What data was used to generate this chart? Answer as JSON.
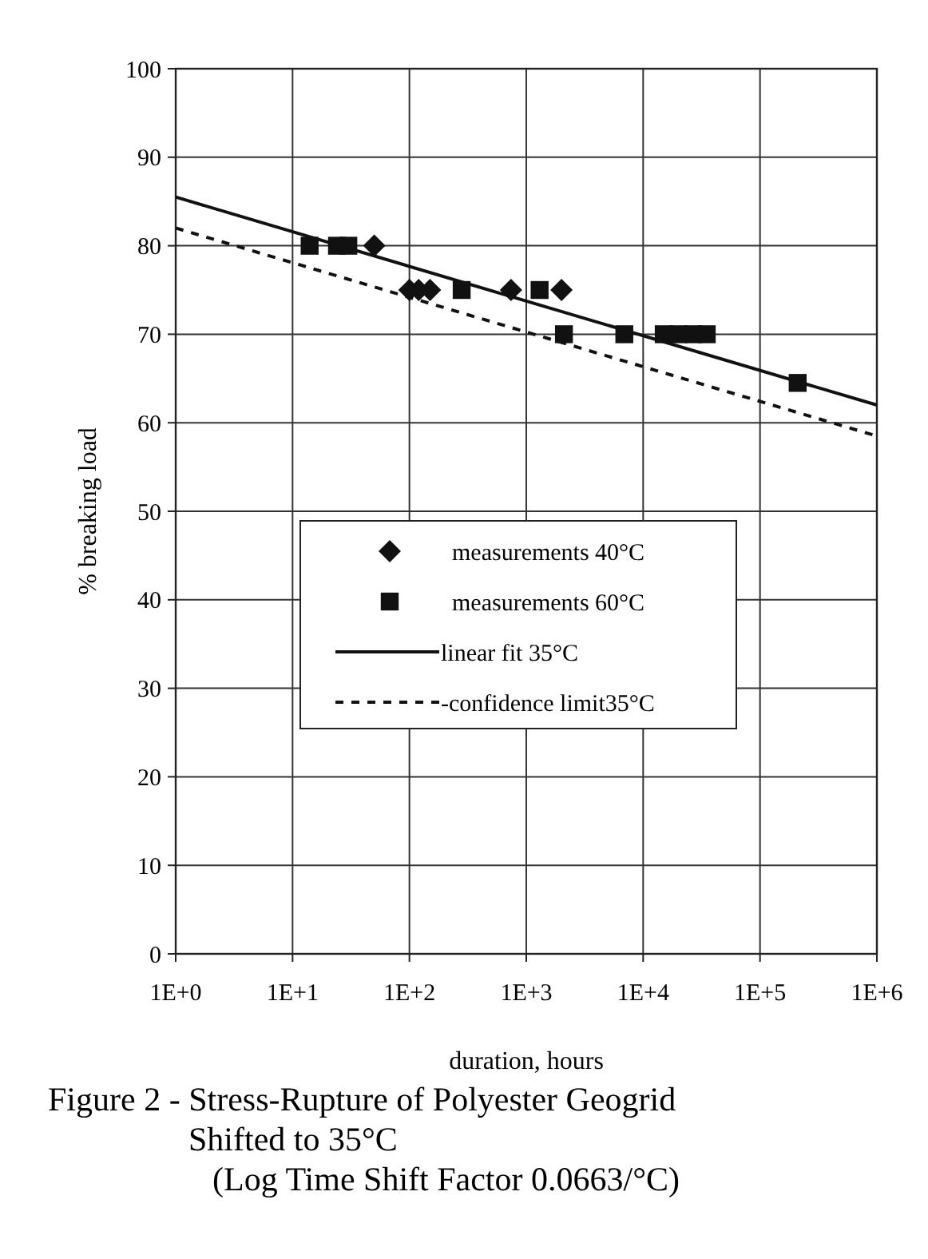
{
  "chart_data": {
    "type": "scatter",
    "title": "Figure 2 - Stress-Rupture of Polyester Geogrid\nShifted to 35°C",
    "subtitle": "(Log Time Shift Factor 0.0663/°C)",
    "xlabel": "duration, hours",
    "ylabel": "% breaking load",
    "log": "x",
    "xlim": [
      1,
      1000000
    ],
    "xticks": [
      {
        "value": 1,
        "label": "1E+0"
      },
      {
        "value": 10,
        "label": "1E+1"
      },
      {
        "value": 100,
        "label": "1E+2"
      },
      {
        "value": 1000,
        "label": "1E+3"
      },
      {
        "value": 10000,
        "label": "1E+4"
      },
      {
        "value": 100000,
        "label": "1E+5"
      },
      {
        "value": 1000000,
        "label": "1E+6"
      }
    ],
    "ylim": [
      0,
      100
    ],
    "yticks": [
      0,
      10,
      20,
      30,
      40,
      50,
      60,
      70,
      80,
      90,
      100
    ],
    "grid": true,
    "legend": "center",
    "series": [
      {
        "name": "measurements 40°C",
        "marker": "diamond",
        "color": "#111111",
        "x": [
          50,
          100,
          120,
          150,
          740,
          2000
        ],
        "values": [
          80,
          75,
          75,
          75,
          75,
          75
        ]
      },
      {
        "name": "measurements 60°C",
        "marker": "square",
        "color": "#111111",
        "x": [
          14,
          24,
          30,
          280,
          1300,
          2100,
          6900,
          15000,
          20000,
          27000,
          35000,
          210000
        ],
        "values": [
          80,
          80,
          80,
          75,
          75,
          70,
          70,
          70,
          70,
          70,
          70,
          64.5
        ]
      },
      {
        "name": "linear fit 35°C",
        "type": "line",
        "line_style": "solid",
        "color": "#111111",
        "x": [
          1,
          1000000
        ],
        "values": [
          85.5,
          62
        ]
      },
      {
        "name": "-confidence limit35°C",
        "type": "line",
        "line_style": "dashed",
        "color": "#111111",
        "x": [
          1,
          1000000
        ],
        "values": [
          82,
          58.5
        ]
      }
    ]
  }
}
